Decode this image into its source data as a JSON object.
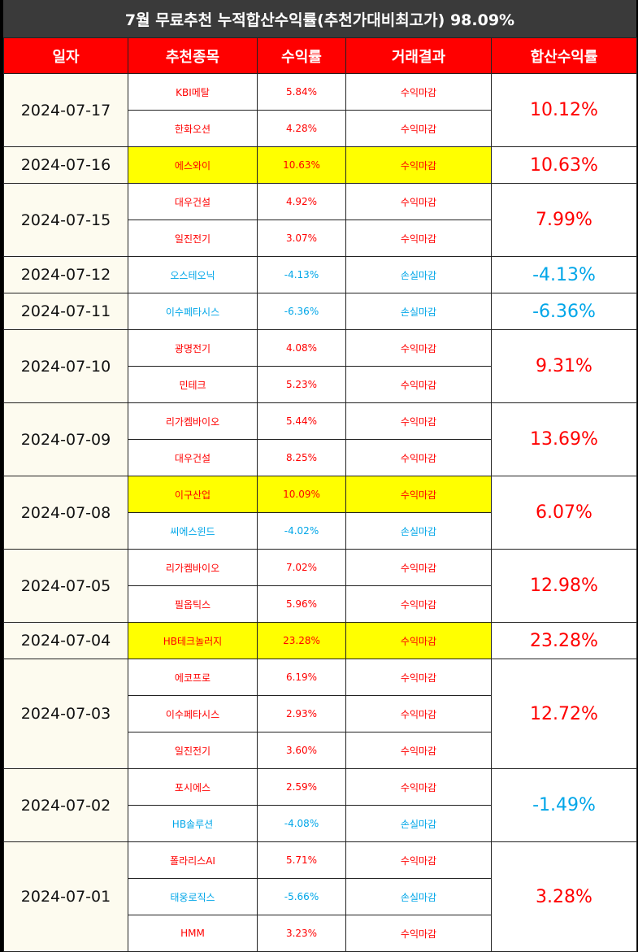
{
  "title": "7월 무료추천 누적합산수익률(추천가대비최고가) 98.09%",
  "headers": [
    "일자",
    "추천종목",
    "수익률",
    "거래결과",
    "합산수익률"
  ],
  "colors": {
    "gain": "#ff0000",
    "loss": "#00a6e8",
    "highlight": "#ffff00",
    "header_bg": "#ff0000"
  },
  "groups": [
    {
      "date": "2024-07-17",
      "total": "10.12%",
      "total_sign": "gain",
      "rows": [
        {
          "stock": "KBI메탈",
          "rate": "5.84%",
          "result": "수익마감",
          "sign": "gain",
          "highlight": false
        },
        {
          "stock": "한화오션",
          "rate": "4.28%",
          "result": "수익마감",
          "sign": "gain",
          "highlight": false
        }
      ]
    },
    {
      "date": "2024-07-16",
      "total": "10.63%",
      "total_sign": "gain",
      "rows": [
        {
          "stock": "에스와이",
          "rate": "10.63%",
          "result": "수익마감",
          "sign": "gain",
          "highlight": true
        }
      ]
    },
    {
      "date": "2024-07-15",
      "total": "7.99%",
      "total_sign": "gain",
      "rows": [
        {
          "stock": "대우건설",
          "rate": "4.92%",
          "result": "수익마감",
          "sign": "gain",
          "highlight": false
        },
        {
          "stock": "일진전기",
          "rate": "3.07%",
          "result": "수익마감",
          "sign": "gain",
          "highlight": false
        }
      ]
    },
    {
      "date": "2024-07-12",
      "total": "-4.13%",
      "total_sign": "loss",
      "rows": [
        {
          "stock": "오스테오닉",
          "rate": "-4.13%",
          "result": "손실마감",
          "sign": "loss",
          "highlight": false
        }
      ]
    },
    {
      "date": "2024-07-11",
      "total": "-6.36%",
      "total_sign": "loss",
      "rows": [
        {
          "stock": "이수페타시스",
          "rate": "-6.36%",
          "result": "손실마감",
          "sign": "loss",
          "highlight": false
        }
      ]
    },
    {
      "date": "2024-07-10",
      "total": "9.31%",
      "total_sign": "gain",
      "rows": [
        {
          "stock": "광명전기",
          "rate": "4.08%",
          "result": "수익마감",
          "sign": "gain",
          "highlight": false
        },
        {
          "stock": "민테크",
          "rate": "5.23%",
          "result": "수익마감",
          "sign": "gain",
          "highlight": false
        }
      ]
    },
    {
      "date": "2024-07-09",
      "total": "13.69%",
      "total_sign": "gain",
      "rows": [
        {
          "stock": "리가켐바이오",
          "rate": "5.44%",
          "result": "수익마감",
          "sign": "gain",
          "highlight": false
        },
        {
          "stock": "대우건설",
          "rate": "8.25%",
          "result": "수익마감",
          "sign": "gain",
          "highlight": false
        }
      ]
    },
    {
      "date": "2024-07-08",
      "total": "6.07%",
      "total_sign": "gain",
      "rows": [
        {
          "stock": "이구산업",
          "rate": "10.09%",
          "result": "수익마감",
          "sign": "gain",
          "highlight": true
        },
        {
          "stock": "씨에스윈드",
          "rate": "-4.02%",
          "result": "손실마감",
          "sign": "loss",
          "highlight": false
        }
      ]
    },
    {
      "date": "2024-07-05",
      "total": "12.98%",
      "total_sign": "gain",
      "rows": [
        {
          "stock": "리가켐바이오",
          "rate": "7.02%",
          "result": "수익마감",
          "sign": "gain",
          "highlight": false
        },
        {
          "stock": "필옵틱스",
          "rate": "5.96%",
          "result": "수익마감",
          "sign": "gain",
          "highlight": false
        }
      ]
    },
    {
      "date": "2024-07-04",
      "total": "23.28%",
      "total_sign": "gain",
      "rows": [
        {
          "stock": "HB테크놀러지",
          "rate": "23.28%",
          "result": "수익마감",
          "sign": "gain",
          "highlight": true
        }
      ]
    },
    {
      "date": "2024-07-03",
      "total": "12.72%",
      "total_sign": "gain",
      "rows": [
        {
          "stock": "에코프로",
          "rate": "6.19%",
          "result": "수익마감",
          "sign": "gain",
          "highlight": false
        },
        {
          "stock": "이수페타시스",
          "rate": "2.93%",
          "result": "수익마감",
          "sign": "gain",
          "highlight": false
        },
        {
          "stock": "일진전기",
          "rate": "3.60%",
          "result": "수익마감",
          "sign": "gain",
          "highlight": false
        }
      ]
    },
    {
      "date": "2024-07-02",
      "total": "-1.49%",
      "total_sign": "loss",
      "rows": [
        {
          "stock": "포시에스",
          "rate": "2.59%",
          "result": "수익마감",
          "sign": "gain",
          "highlight": false
        },
        {
          "stock": "HB솔루션",
          "rate": "-4.08%",
          "result": "손실마감",
          "sign": "loss",
          "highlight": false
        }
      ]
    },
    {
      "date": "2024-07-01",
      "total": "3.28%",
      "total_sign": "gain",
      "rows": [
        {
          "stock": "폴라리스AI",
          "rate": "5.71%",
          "result": "수익마감",
          "sign": "gain",
          "highlight": false
        },
        {
          "stock": "태웅로직스",
          "rate": "-5.66%",
          "result": "손실마감",
          "sign": "loss",
          "highlight": false
        },
        {
          "stock": "HMM",
          "rate": "3.23%",
          "result": "수익마감",
          "sign": "gain",
          "highlight": false
        }
      ]
    }
  ]
}
